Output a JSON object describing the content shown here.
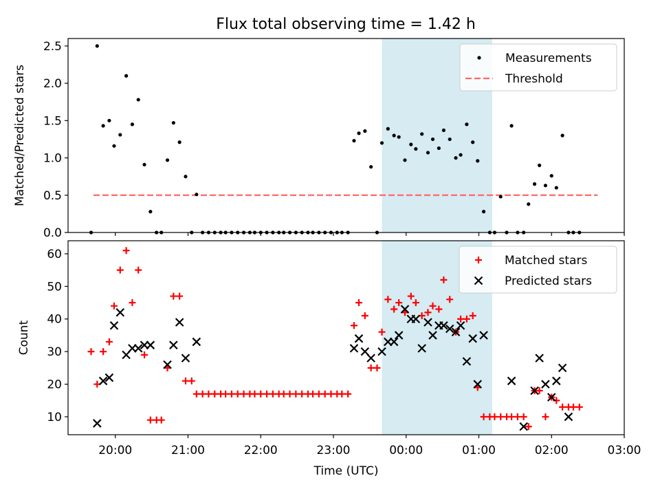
{
  "title": "Flux total observing time = 1.42 h",
  "colors": {
    "shade": "#add8e6",
    "matched": "#ff0000",
    "predicted": "#000000",
    "threshold": "#ff6666",
    "measurement": "#000000"
  },
  "chart_data": [
    {
      "type": "scatter",
      "ylabel": "Matched/Predicted stars",
      "xlabel": "",
      "ylim": [
        0,
        2.6
      ],
      "xlim": [
        "19:21",
        "03:00"
      ],
      "yticks": [
        "0.0",
        "0.5",
        "1.0",
        "1.5",
        "2.0",
        "2.5"
      ],
      "shaded_interval": [
        "23:40",
        "01:11"
      ],
      "legend": {
        "position": "top-right",
        "items": [
          "Measurements",
          "Threshold"
        ]
      },
      "threshold": {
        "name": "Threshold",
        "value": 0.5,
        "x_range": [
          "19:42",
          "02:38"
        ]
      },
      "series": [
        {
          "name": "Measurements",
          "points": [
            [
              "19:40",
              0.0
            ],
            [
              "19:45",
              2.5
            ],
            [
              "19:50",
              1.43
            ],
            [
              "19:55",
              1.5
            ],
            [
              "19:59",
              1.16
            ],
            [
              "20:04",
              1.31
            ],
            [
              "20:09",
              2.1
            ],
            [
              "20:14",
              1.45
            ],
            [
              "20:19",
              1.78
            ],
            [
              "20:24",
              0.91
            ],
            [
              "20:29",
              0.28
            ],
            [
              "20:34",
              0.0
            ],
            [
              "20:38",
              0.0
            ],
            [
              "20:43",
              0.97
            ],
            [
              "20:48",
              1.47
            ],
            [
              "20:53",
              1.21
            ],
            [
              "20:58",
              0.75
            ],
            [
              "21:03",
              0.0
            ],
            [
              "21:07",
              0.51
            ],
            [
              "21:12",
              0.0
            ],
            [
              "21:17",
              0.0
            ],
            [
              "21:22",
              0.0
            ],
            [
              "21:27",
              0.0
            ],
            [
              "21:31",
              0.0
            ],
            [
              "21:36",
              0.0
            ],
            [
              "21:41",
              0.0
            ],
            [
              "21:46",
              0.0
            ],
            [
              "21:51",
              0.0
            ],
            [
              "21:55",
              0.0
            ],
            [
              "22:00",
              0.0
            ],
            [
              "22:05",
              0.0
            ],
            [
              "22:10",
              0.0
            ],
            [
              "22:15",
              0.0
            ],
            [
              "22:19",
              0.0
            ],
            [
              "22:24",
              0.0
            ],
            [
              "22:29",
              0.0
            ],
            [
              "22:34",
              0.0
            ],
            [
              "22:39",
              0.0
            ],
            [
              "22:43",
              0.0
            ],
            [
              "22:48",
              0.0
            ],
            [
              "22:53",
              0.0
            ],
            [
              "22:58",
              0.0
            ],
            [
              "23:03",
              0.0
            ],
            [
              "23:07",
              0.0
            ],
            [
              "23:12",
              0.0
            ],
            [
              "23:17",
              1.23
            ],
            [
              "23:21",
              1.33
            ],
            [
              "23:26",
              1.36
            ],
            [
              "23:31",
              0.88
            ],
            [
              "23:36",
              0.0
            ],
            [
              "23:40",
              1.2
            ],
            [
              "23:45",
              1.39
            ],
            [
              "23:50",
              1.3
            ],
            [
              "23:54",
              1.28
            ],
            [
              "23:59",
              0.97
            ],
            [
              "00:04",
              1.18
            ],
            [
              "00:08",
              1.12
            ],
            [
              "00:13",
              1.32
            ],
            [
              "00:18",
              1.07
            ],
            [
              "00:22",
              1.25
            ],
            [
              "00:27",
              1.13
            ],
            [
              "00:31",
              1.37
            ],
            [
              "00:36",
              1.25
            ],
            [
              "00:41",
              1.0
            ],
            [
              "00:45",
              1.04
            ],
            [
              "00:50",
              1.45
            ],
            [
              "00:55",
              1.21
            ],
            [
              "00:59",
              0.96
            ],
            [
              "01:04",
              0.28
            ],
            [
              "01:09",
              0.0
            ],
            [
              "01:13",
              0.0
            ],
            [
              "01:18",
              0.48
            ],
            [
              "01:23",
              0.0
            ],
            [
              "01:27",
              1.43
            ],
            [
              "01:32",
              0.0
            ],
            [
              "01:37",
              0.0
            ],
            [
              "01:41",
              0.38
            ],
            [
              "01:46",
              0.65
            ],
            [
              "01:50",
              0.9
            ],
            [
              "01:55",
              0.63
            ],
            [
              "02:00",
              0.76
            ],
            [
              "02:04",
              0.6
            ],
            [
              "02:09",
              1.3
            ],
            [
              "02:14",
              0.0
            ],
            [
              "02:18",
              0.0
            ],
            [
              "02:23",
              0.0
            ]
          ]
        }
      ]
    },
    {
      "type": "scatter",
      "ylabel": "Count",
      "xlabel": "Time (UTC)",
      "ylim": [
        4.5,
        64
      ],
      "xlim": [
        "19:21",
        "03:00"
      ],
      "yticks": [
        "10",
        "20",
        "30",
        "40",
        "50",
        "60"
      ],
      "xticks": [
        "20:00",
        "21:00",
        "22:00",
        "23:00",
        "00:00",
        "01:00",
        "02:00",
        "03:00"
      ],
      "shaded_interval": [
        "23:40",
        "01:11"
      ],
      "legend": {
        "position": "top-right",
        "items": [
          "Matched stars",
          "Predicted stars"
        ]
      },
      "series": [
        {
          "name": "Matched stars",
          "points": [
            [
              "19:40",
              30
            ],
            [
              "19:45",
              20
            ],
            [
              "19:50",
              30
            ],
            [
              "19:55",
              33
            ],
            [
              "19:59",
              44
            ],
            [
              "20:04",
              55
            ],
            [
              "20:09",
              61
            ],
            [
              "20:14",
              45
            ],
            [
              "20:19",
              55
            ],
            [
              "20:24",
              29
            ],
            [
              "20:29",
              9
            ],
            [
              "20:34",
              9
            ],
            [
              "20:38",
              9
            ],
            [
              "20:43",
              25
            ],
            [
              "20:48",
              47
            ],
            [
              "20:53",
              47
            ],
            [
              "20:58",
              21
            ],
            [
              "21:03",
              21
            ],
            [
              "21:07",
              17
            ],
            [
              "21:12",
              17
            ],
            [
              "21:17",
              17
            ],
            [
              "21:22",
              17
            ],
            [
              "21:27",
              17
            ],
            [
              "21:31",
              17
            ],
            [
              "21:36",
              17
            ],
            [
              "21:41",
              17
            ],
            [
              "21:46",
              17
            ],
            [
              "21:51",
              17
            ],
            [
              "21:55",
              17
            ],
            [
              "22:00",
              17
            ],
            [
              "22:05",
              17
            ],
            [
              "22:10",
              17
            ],
            [
              "22:15",
              17
            ],
            [
              "22:19",
              17
            ],
            [
              "22:24",
              17
            ],
            [
              "22:29",
              17
            ],
            [
              "22:34",
              17
            ],
            [
              "22:39",
              17
            ],
            [
              "22:43",
              17
            ],
            [
              "22:48",
              17
            ],
            [
              "22:53",
              17
            ],
            [
              "22:58",
              17
            ],
            [
              "23:03",
              17
            ],
            [
              "23:07",
              17
            ],
            [
              "23:12",
              17
            ],
            [
              "23:17",
              38
            ],
            [
              "23:21",
              45
            ],
            [
              "23:26",
              41
            ],
            [
              "23:31",
              25
            ],
            [
              "23:36",
              25
            ],
            [
              "23:40",
              36
            ],
            [
              "23:45",
              46
            ],
            [
              "23:50",
              43
            ],
            [
              "23:54",
              45
            ],
            [
              "23:59",
              42
            ],
            [
              "00:04",
              47
            ],
            [
              "00:08",
              45
            ],
            [
              "00:13",
              41
            ],
            [
              "00:18",
              42
            ],
            [
              "00:22",
              44
            ],
            [
              "00:27",
              43
            ],
            [
              "00:31",
              52
            ],
            [
              "00:36",
              46
            ],
            [
              "00:41",
              36
            ],
            [
              "00:45",
              40
            ],
            [
              "00:50",
              40
            ],
            [
              "00:55",
              41
            ],
            [
              "00:59",
              19
            ],
            [
              "01:04",
              10
            ],
            [
              "01:09",
              10
            ],
            [
              "01:13",
              10
            ],
            [
              "01:18",
              10
            ],
            [
              "01:23",
              10
            ],
            [
              "01:27",
              10
            ],
            [
              "01:32",
              10
            ],
            [
              "01:37",
              10
            ],
            [
              "01:41",
              7
            ],
            [
              "01:46",
              18
            ],
            [
              "01:50",
              18
            ],
            [
              "01:55",
              10
            ],
            [
              "02:00",
              16
            ],
            [
              "02:04",
              15
            ],
            [
              "02:09",
              13
            ],
            [
              "02:14",
              13
            ],
            [
              "02:18",
              13
            ],
            [
              "02:23",
              13
            ]
          ]
        },
        {
          "name": "Predicted stars",
          "points": [
            [
              "19:45",
              8
            ],
            [
              "19:50",
              21
            ],
            [
              "19:55",
              22
            ],
            [
              "19:59",
              38
            ],
            [
              "20:04",
              42
            ],
            [
              "20:09",
              29
            ],
            [
              "20:14",
              31
            ],
            [
              "20:19",
              31
            ],
            [
              "20:24",
              32
            ],
            [
              "20:29",
              32
            ],
            [
              "20:43",
              26
            ],
            [
              "20:48",
              32
            ],
            [
              "20:53",
              39
            ],
            [
              "20:58",
              28
            ],
            [
              "21:07",
              33
            ],
            [
              "23:17",
              31
            ],
            [
              "23:21",
              34
            ],
            [
              "23:26",
              30
            ],
            [
              "23:31",
              28
            ],
            [
              "23:40",
              30
            ],
            [
              "23:45",
              33
            ],
            [
              "23:50",
              33
            ],
            [
              "23:54",
              35
            ],
            [
              "23:59",
              43
            ],
            [
              "00:04",
              40
            ],
            [
              "00:08",
              40
            ],
            [
              "00:13",
              31
            ],
            [
              "00:18",
              39
            ],
            [
              "00:22",
              35
            ],
            [
              "00:27",
              38
            ],
            [
              "00:31",
              38
            ],
            [
              "00:36",
              37
            ],
            [
              "00:41",
              36
            ],
            [
              "00:45",
              38
            ],
            [
              "00:50",
              27
            ],
            [
              "00:55",
              34
            ],
            [
              "00:59",
              20
            ],
            [
              "01:04",
              35
            ],
            [
              "01:27",
              21
            ],
            [
              "01:37",
              7
            ],
            [
              "01:46",
              18
            ],
            [
              "01:50",
              28
            ],
            [
              "01:55",
              20
            ],
            [
              "02:00",
              16
            ],
            [
              "02:04",
              21
            ],
            [
              "02:09",
              25
            ],
            [
              "02:14",
              10
            ]
          ]
        }
      ]
    }
  ]
}
